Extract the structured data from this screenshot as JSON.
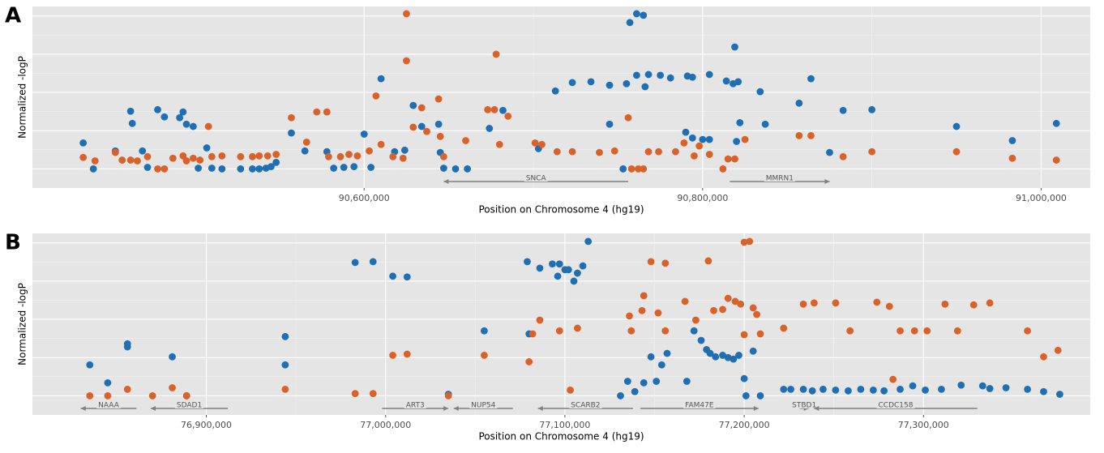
{
  "chart_data": [
    {
      "type": "scatter",
      "panel_label": "A",
      "xlabel": "Position on Chromosome 4 (hg19)",
      "ylabel": "Normalized -logP",
      "xlim": [
        90404000,
        91029000
      ],
      "xticks": [
        {
          "value": 90600000,
          "label": "90,600,000"
        },
        {
          "value": 90800000,
          "label": "90,800,000"
        },
        {
          "value": 91000000,
          "label": "91,000,000"
        }
      ],
      "ylim": [
        -0.5,
        4.25
      ],
      "yticks": [
        0,
        1,
        2,
        3,
        4
      ],
      "grid": true,
      "series": [
        {
          "color": "#1f6fb2",
          "x": [
            90434000,
            90440000,
            90453000,
            90462000,
            90463000,
            90469000,
            90472000,
            90478000,
            90482000,
            90491000,
            90493000,
            90495000,
            90499000,
            90502000,
            90507000,
            90510000,
            90516000,
            90527000,
            90534000,
            90538000,
            90542000,
            90545000,
            90548000,
            90557000,
            90565000,
            90578000,
            90582000,
            90588000,
            90594000,
            90600000,
            90604000,
            90610000,
            90618000,
            90624000,
            90629000,
            90634000,
            90644000,
            90645000,
            90647000,
            90654000,
            90661000,
            90674000,
            90682000,
            90703000,
            90713000,
            90723000,
            90734000,
            90745000,
            90745000,
            90753000,
            90755000,
            90757000,
            90761000,
            90765000,
            90761000,
            90766000,
            90768000,
            90775000,
            90781000,
            90791000,
            90794000,
            90804000,
            90790000,
            90794000,
            90800000,
            90804000,
            90814000,
            90818000,
            90821000,
            90819000,
            90822000,
            90820000,
            90834000,
            90837000,
            90857000,
            90864000,
            90875000,
            90883000,
            90900000,
            90950000,
            90983000,
            91009000
          ],
          "y": [
            0.68,
            0,
            0.47,
            1.51,
            1.19,
            0.47,
            0.04,
            1.55,
            1.36,
            1.34,
            1.49,
            1.17,
            1.11,
            0.02,
            0.55,
            0.02,
            0,
            0,
            0,
            0,
            0.02,
            0.06,
            0.17,
            0.94,
            0.47,
            0.45,
            0.02,
            0.04,
            0.06,
            0.91,
            0.04,
            2.36,
            0.45,
            0.49,
            1.66,
            1.11,
            1.17,
            0.43,
            0.02,
            0,
            0,
            1.06,
            1.53,
            0.53,
            2.04,
            2.26,
            2.28,
            1.17,
            2.19,
            0,
            2.23,
            3.83,
            4.06,
            4.02,
            2.45,
            2.15,
            2.47,
            2.45,
            2.38,
            2.43,
            2.4,
            2.47,
            0.96,
            0.81,
            0.77,
            0.77,
            2.3,
            2.23,
            2.28,
            3.19,
            1.21,
            0.72,
            2.02,
            1.17,
            1.72,
            2.36,
            0.43,
            1.53,
            1.55,
            1.11,
            0.74,
            1.19
          ]
        },
        {
          "color": "#d9622b",
          "x": [
            90434000,
            90441000,
            90453000,
            90457000,
            90462000,
            90466000,
            90472000,
            90478000,
            90482000,
            90487000,
            90493000,
            90495000,
            90499000,
            90503000,
            90508000,
            90510000,
            90516000,
            90527000,
            90534000,
            90538000,
            90543000,
            90548000,
            90557000,
            90566000,
            90572000,
            90578000,
            90579000,
            90586000,
            90591000,
            90596000,
            90603000,
            90607000,
            90610000,
            90617000,
            90623000,
            90625000,
            90625000,
            90629000,
            90634000,
            90637000,
            90644000,
            90645000,
            90647000,
            90660000,
            90673000,
            90677000,
            90678000,
            90680000,
            90685000,
            90701000,
            90705000,
            90714000,
            90723000,
            90739000,
            90748000,
            90756000,
            90758000,
            90762000,
            90765000,
            90768000,
            90774000,
            90784000,
            90789000,
            90795000,
            90798000,
            90804000,
            90812000,
            90815000,
            90819000,
            90825000,
            90857000,
            90864000,
            90883000,
            90900000,
            90950000,
            90983000,
            91009000
          ],
          "y": [
            0.3,
            0.21,
            0.43,
            0.23,
            0.23,
            0.21,
            0.32,
            0,
            0,
            0.28,
            0.34,
            0.21,
            0.28,
            0.23,
            1.11,
            0.32,
            0.34,
            0.32,
            0.32,
            0.34,
            0.34,
            0.38,
            1.34,
            0.7,
            1.49,
            1.49,
            0.32,
            0.32,
            0.38,
            0.34,
            0.47,
            1.91,
            0.64,
            0.32,
            0.28,
            4.06,
            2.83,
            1.09,
            1.6,
            0.98,
            1.83,
            0.85,
            0.32,
            0.74,
            1.55,
            1.55,
            3.0,
            0.64,
            1.38,
            0.68,
            0.64,
            0.45,
            0.45,
            0.43,
            0.47,
            1.34,
            0,
            0,
            0,
            0.45,
            0.45,
            0.45,
            0.68,
            0.34,
            0.6,
            0.38,
            0,
            0.26,
            0.26,
            0.77,
            0.87,
            0.87,
            0.32,
            0.45,
            0.45,
            0.28,
            0.23
          ]
        }
      ],
      "genes": [
        {
          "label": "SNCA",
          "start": 90647000,
          "end": 90756000,
          "strand": "-"
        },
        {
          "label": "MMRN1",
          "start": 90816000,
          "end": 90875000,
          "strand": "+"
        }
      ]
    },
    {
      "type": "scatter",
      "panel_label": "B",
      "xlabel": "Position on Chromosome 4 (hg19)",
      "ylabel": "Normalized -logP",
      "xlim": [
        76803000,
        77393000
      ],
      "xticks": [
        {
          "value": 76900000,
          "label": "76,900,000"
        },
        {
          "value": 77000000,
          "label": "77,000,000"
        },
        {
          "value": 77100000,
          "label": "77,100,000"
        },
        {
          "value": 77200000,
          "label": "77,200,000"
        },
        {
          "value": 77300000,
          "label": "77,300,000"
        }
      ],
      "ylim": [
        -0.5,
        4.25
      ],
      "yticks": [
        0,
        1,
        2,
        3,
        4
      ],
      "grid": true,
      "series": [
        {
          "color": "#1f6fb2",
          "x": [
            76835000,
            76845000,
            76856000,
            76856000,
            76881000,
            76889000,
            76944000,
            76944000,
            76983000,
            76993000,
            77004000,
            77012000,
            77035000,
            77055000,
            77079000,
            77080000,
            77086000,
            77093000,
            77096000,
            77097000,
            77100000,
            77102000,
            77105000,
            77107000,
            77110000,
            77113000,
            77131000,
            77135000,
            77139000,
            77144000,
            77148000,
            77151000,
            77154000,
            77157000,
            77168000,
            77172000,
            77176000,
            77179000,
            77181000,
            77184000,
            77188000,
            77191000,
            77194000,
            77197000,
            77200000,
            77201000,
            77205000,
            77209000,
            77222000,
            77226000,
            77233000,
            77238000,
            77244000,
            77251000,
            77258000,
            77265000,
            77272000,
            77278000,
            77287000,
            77294000,
            77301000,
            77310000,
            77321000,
            77333000,
            77337000,
            77346000,
            77358000,
            77367000,
            77376000
          ],
          "y": [
            0.81,
            0.34,
            1.36,
            1.28,
            1.02,
            0,
            1.55,
            0.81,
            3.49,
            3.51,
            3.13,
            3.11,
            0.04,
            1.7,
            3.51,
            1.62,
            3.34,
            3.45,
            3.13,
            3.45,
            3.3,
            3.3,
            3.0,
            3.21,
            3.4,
            4.04,
            0,
            0.38,
            0.11,
            0.34,
            1.02,
            0.38,
            0.81,
            1.11,
            0.38,
            1.7,
            1.45,
            1.21,
            1.11,
            1.02,
            1.06,
            1.0,
            0.96,
            1.06,
            0.45,
            0,
            1.17,
            0,
            0.17,
            0.17,
            0.17,
            0.13,
            0.17,
            0.15,
            0.13,
            0.17,
            0.15,
            0.13,
            0.17,
            0.26,
            0.15,
            0.17,
            0.28,
            0.26,
            0.19,
            0.21,
            0.17,
            0.11,
            0.04
          ]
        },
        {
          "color": "#d9622b",
          "x": [
            76835000,
            76845000,
            76856000,
            76870000,
            76881000,
            76889000,
            76944000,
            76983000,
            76993000,
            77004000,
            77012000,
            77035000,
            77055000,
            77080000,
            77082000,
            77086000,
            77097000,
            77107000,
            77103000,
            77136000,
            77137000,
            77144000,
            77148000,
            77156000,
            77143000,
            77152000,
            77156000,
            77167000,
            77173000,
            77180000,
            77183000,
            77188000,
            77191000,
            77195000,
            77198000,
            77200000,
            77203000,
            77205000,
            77207000,
            77200000,
            77209000,
            77222000,
            77233000,
            77239000,
            77251000,
            77259000,
            77274000,
            77281000,
            77283000,
            77287000,
            77295000,
            77302000,
            77312000,
            77319000,
            77328000,
            77337000,
            77358000,
            77367000,
            77375000
          ],
          "y": [
            0,
            0,
            0.17,
            0,
            0.21,
            0,
            0.17,
            0.06,
            0.06,
            1.06,
            1.09,
            0,
            1.06,
            0.89,
            1.62,
            1.98,
            1.7,
            1.77,
            0.15,
            2.09,
            1.7,
            2.62,
            3.51,
            3.47,
            2.23,
            2.17,
            1.7,
            2.47,
            1.98,
            3.53,
            2.23,
            2.26,
            2.55,
            2.47,
            2.4,
            4.02,
            4.04,
            2.3,
            2.13,
            1.6,
            1.62,
            1.77,
            2.4,
            2.43,
            2.43,
            1.7,
            2.45,
            2.34,
            0.43,
            1.7,
            1.7,
            1.7,
            2.4,
            1.7,
            2.38,
            2.43,
            1.7,
            1.02,
            1.19
          ]
        }
      ],
      "genes": [
        {
          "label": "NAAA",
          "start": 76830000,
          "end": 76861000,
          "strand": "-"
        },
        {
          "label": "SDAD1",
          "start": 76869000,
          "end": 76912000,
          "strand": "-"
        },
        {
          "label": "ART3",
          "start": 76998000,
          "end": 77035000,
          "strand": "+"
        },
        {
          "label": "NUP54",
          "start": 77038000,
          "end": 77071000,
          "strand": "-"
        },
        {
          "label": "SCARB2",
          "start": 77085000,
          "end": 77138000,
          "strand": "-"
        },
        {
          "label": "FAM47E",
          "start": 77142000,
          "end": 77208000,
          "strand": "+"
        },
        {
          "label": "STBD1",
          "start": 77231000,
          "end": 77236000,
          "strand": "+"
        },
        {
          "label": "CCDC158",
          "start": 77239000,
          "end": 77330000,
          "strand": "-"
        }
      ]
    }
  ]
}
